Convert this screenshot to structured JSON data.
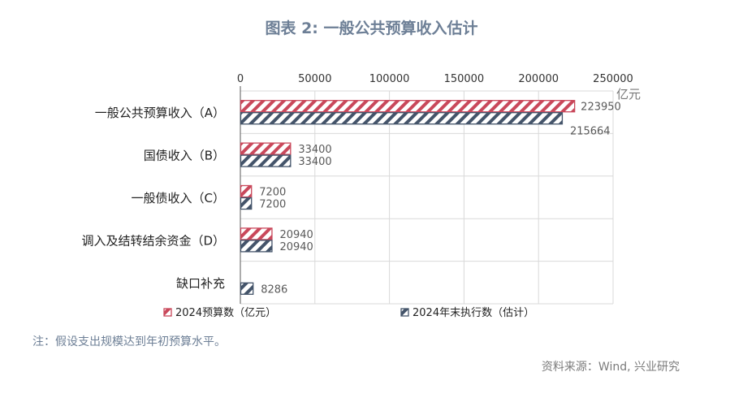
{
  "title": "图表 2:  一般公共预算收入估计",
  "note": "注：假设支出规模达到年初预算水平。",
  "source": "资料来源：Wind, 兴业研究",
  "colors": {
    "budget": "#c9485b",
    "actual": "#44546a",
    "grid": "#d9d9d9",
    "text": "#595959"
  },
  "chart_data": {
    "type": "bar",
    "orientation": "horizontal",
    "categories": [
      "一般公共预算收入（A）",
      "国债收入（B）",
      "一般债收入（C）",
      "调入及结转结余资金（D）",
      "缺口补充"
    ],
    "series": [
      {
        "name": "2024预算数（亿元）",
        "values": [
          223950,
          33400,
          7200,
          20940,
          null
        ],
        "pattern": "red-hatch"
      },
      {
        "name": "2024年末执行数（估计）",
        "values": [
          215664,
          33400,
          7200,
          20940,
          8286
        ],
        "pattern": "navy-hatch"
      }
    ],
    "value_axis": {
      "min": 0,
      "max": 250000,
      "ticks": [
        "0",
        "50000",
        "100000",
        "150000",
        "200000",
        "250000"
      ],
      "position": "top",
      "unit": "亿元"
    },
    "data_labels": [
      [
        "223950",
        "33400",
        "7200",
        "20940",
        ""
      ],
      [
        "215664",
        "33400",
        "7200",
        "20940",
        "8286"
      ]
    ],
    "grid": true,
    "legend_position": "bottom"
  }
}
